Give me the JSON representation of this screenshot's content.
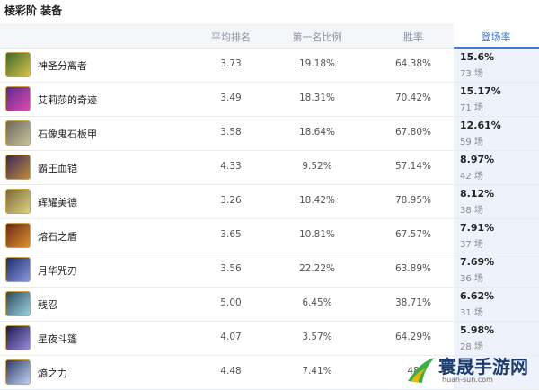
{
  "header": {
    "title": "棱彩阶 装备"
  },
  "table": {
    "columns": [
      "平均排名",
      "第一名比例",
      "胜率",
      "登场率"
    ],
    "rows": [
      {
        "name": "神圣分离者",
        "avg_place": "3.73",
        "top1": "19.18%",
        "win_rate": "64.38%",
        "pick_rate": "15.6%",
        "games": "73 场"
      },
      {
        "name": "艾莉莎的奇迹",
        "avg_place": "3.49",
        "top1": "18.31%",
        "win_rate": "70.42%",
        "pick_rate": "15.17%",
        "games": "71 场"
      },
      {
        "name": "石像鬼石板甲",
        "avg_place": "3.58",
        "top1": "18.64%",
        "win_rate": "67.80%",
        "pick_rate": "12.61%",
        "games": "59 场"
      },
      {
        "name": "霸王血铠",
        "avg_place": "4.33",
        "top1": "9.52%",
        "win_rate": "57.14%",
        "pick_rate": "8.97%",
        "games": "42 场"
      },
      {
        "name": "辉耀美德",
        "avg_place": "3.26",
        "top1": "18.42%",
        "win_rate": "78.95%",
        "pick_rate": "8.12%",
        "games": "38 场"
      },
      {
        "name": "熔石之盾",
        "avg_place": "3.65",
        "top1": "10.81%",
        "win_rate": "67.57%",
        "pick_rate": "7.91%",
        "games": "37 场"
      },
      {
        "name": "月华咒刃",
        "avg_place": "3.56",
        "top1": "22.22%",
        "win_rate": "63.89%",
        "pick_rate": "7.69%",
        "games": "36 场"
      },
      {
        "name": "残忍",
        "avg_place": "5.00",
        "top1": "6.45%",
        "win_rate": "38.71%",
        "pick_rate": "6.62%",
        "games": "31 场"
      },
      {
        "name": "星夜斗篷",
        "avg_place": "4.07",
        "top1": "3.57%",
        "win_rate": "64.29%",
        "pick_rate": "5.98%",
        "games": "28 场"
      },
      {
        "name": "熵之力",
        "avg_place": "4.48",
        "top1": "7.41%",
        "win_rate": "48"
      }
    ]
  },
  "watermark": {
    "text": "寰晟手游网",
    "url": "huan-sun.com"
  }
}
